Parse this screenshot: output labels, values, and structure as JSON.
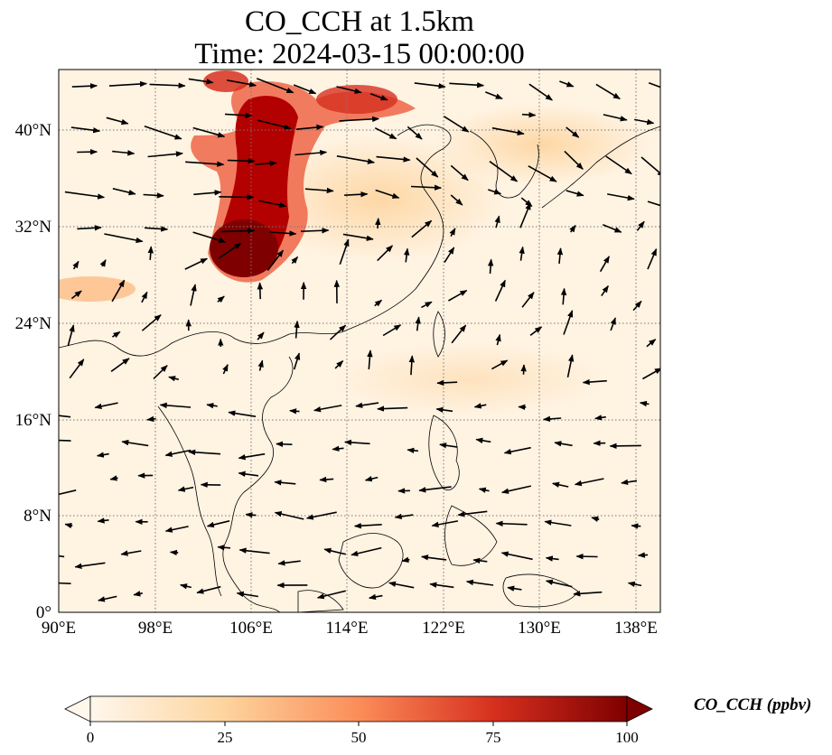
{
  "title_line1": "CO_CCH at 1.5km",
  "title_line2": "Time: 2024-03-15 00:00:00",
  "map": {
    "lon_range": [
      90,
      140
    ],
    "lat_range": [
      0,
      45
    ],
    "lon_ticks": [
      "90°E",
      "98°E",
      "106°E",
      "114°E",
      "122°E",
      "130°E",
      "138°E"
    ],
    "lat_ticks": [
      "0°",
      "8°N",
      "16°N",
      "24°N",
      "32°N",
      "40°N"
    ],
    "gridlines": true,
    "overlay": "wind vectors"
  },
  "colorbar": {
    "label": "CO_CCH (ppbv)",
    "min": 0,
    "max": 100,
    "ticks": [
      "0",
      "25",
      "50",
      "75",
      "100"
    ],
    "colormap": "OrRd",
    "extend": "both"
  }
}
